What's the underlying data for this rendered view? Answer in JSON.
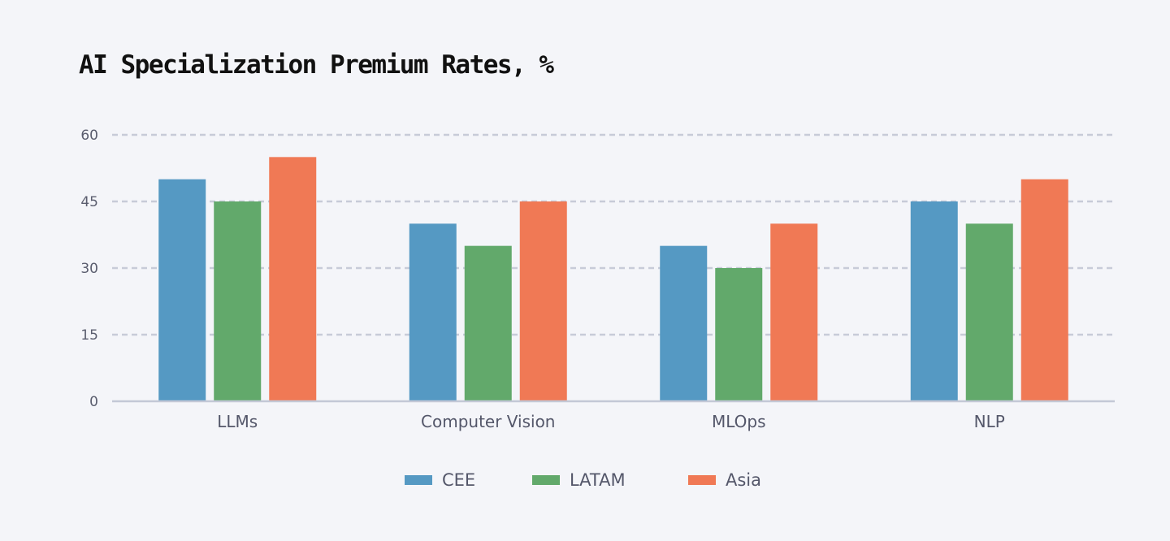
{
  "chart_data": {
    "type": "bar",
    "title": "AI Specialization Premium Rates, %",
    "xlabel": "",
    "ylabel": "",
    "categories": [
      "LLMs",
      "Computer Vision",
      "MLOps",
      "NLP"
    ],
    "series": [
      {
        "name": "CEE",
        "color": "#5599c3",
        "values": [
          50,
          40,
          35,
          45
        ]
      },
      {
        "name": "LATAM",
        "color": "#62a96b",
        "values": [
          45,
          35,
          30,
          40
        ]
      },
      {
        "name": "Asia",
        "color": "#f07955",
        "values": [
          55,
          45,
          40,
          50
        ]
      }
    ],
    "ylim": [
      0,
      60
    ],
    "yticks": [
      0,
      15,
      30,
      45,
      60
    ],
    "grid": true,
    "legend": "bottom-center"
  }
}
